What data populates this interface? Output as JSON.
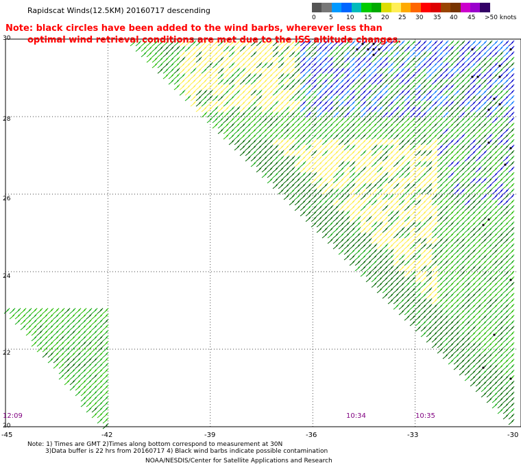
{
  "header": {
    "title": "Rapidscat Winds(12.5KM) 20160717 descending",
    "note_line1": "Note: black circles have been added to the wind barbs, wherever less than",
    "note_line2": "optimal wind retrieval conditions are met due to the ISS altitude changes."
  },
  "colorbar": {
    "colors": [
      "#555555",
      "#777777",
      "#0099ff",
      "#0066ff",
      "#00bbbb",
      "#00cc00",
      "#00aa00",
      "#dddd00",
      "#ffee55",
      "#ffaa00",
      "#ff6600",
      "#ff0000",
      "#dd0000",
      "#994400",
      "#773300",
      "#cc00cc",
      "#9900cc",
      "#330066"
    ],
    "labels": [
      "0",
      "5",
      "10",
      "15",
      "20",
      "25",
      "30",
      "35",
      "40",
      "45",
      ">50 knots"
    ]
  },
  "axes": {
    "lat_labels": [
      "30",
      "28",
      "26",
      "24",
      "22",
      "20"
    ],
    "lon_labels": [
      "-45",
      "-42",
      "-39",
      "-36",
      "-33",
      "-30"
    ]
  },
  "times": {
    "left": "12:09",
    "middle": "10:34",
    "right": "10:35"
  },
  "footer": {
    "line1": "Note: 1) Times are GMT 2)Times along bottom correspond to measurement at 30N",
    "line2": "3)Data buffer is 22 hrs from 20160717 4) Black wind barbs indicate possible contamination",
    "line3": "NOAA/NESDIS/Center for Satellite Applications and Research"
  },
  "map": {
    "lat_range": [
      20,
      30
    ],
    "lon_range": [
      -45,
      -30
    ],
    "grid": "dotted"
  }
}
